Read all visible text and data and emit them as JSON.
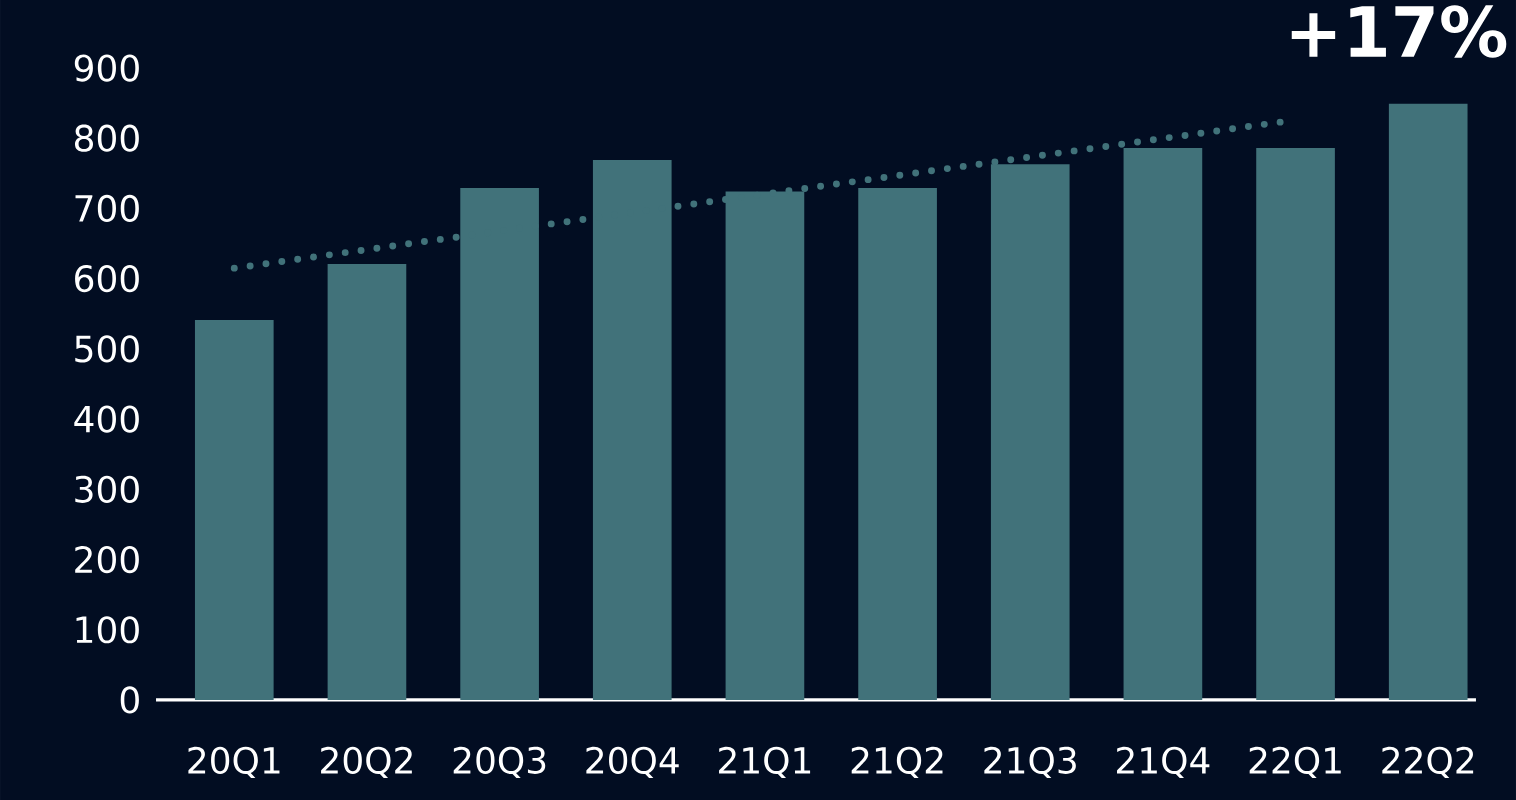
{
  "chart_data": {
    "type": "bar",
    "categories": [
      "20Q1",
      "20Q2",
      "20Q3",
      "20Q4",
      "21Q1",
      "21Q2",
      "21Q3",
      "21Q4",
      "22Q1",
      "22Q2"
    ],
    "series": [
      {
        "color": "#41727a",
        "values": [
          541,
          621,
          729,
          769,
          724,
          729,
          763,
          786,
          786,
          849
        ]
      },
      {
        "type": "line",
        "color": "#41727a",
        "line_style": "dotted",
        "marker": "none",
        "values": [
          615,
          null,
          null,
          null,
          null,
          null,
          null,
          null,
          826,
          null
        ]
      }
    ],
    "ylim": [
      0,
      900
    ],
    "yticks": [
      0,
      100,
      200,
      300,
      400,
      500,
      600,
      700,
      800,
      900
    ],
    "annotations": [
      "+17%"
    ]
  }
}
